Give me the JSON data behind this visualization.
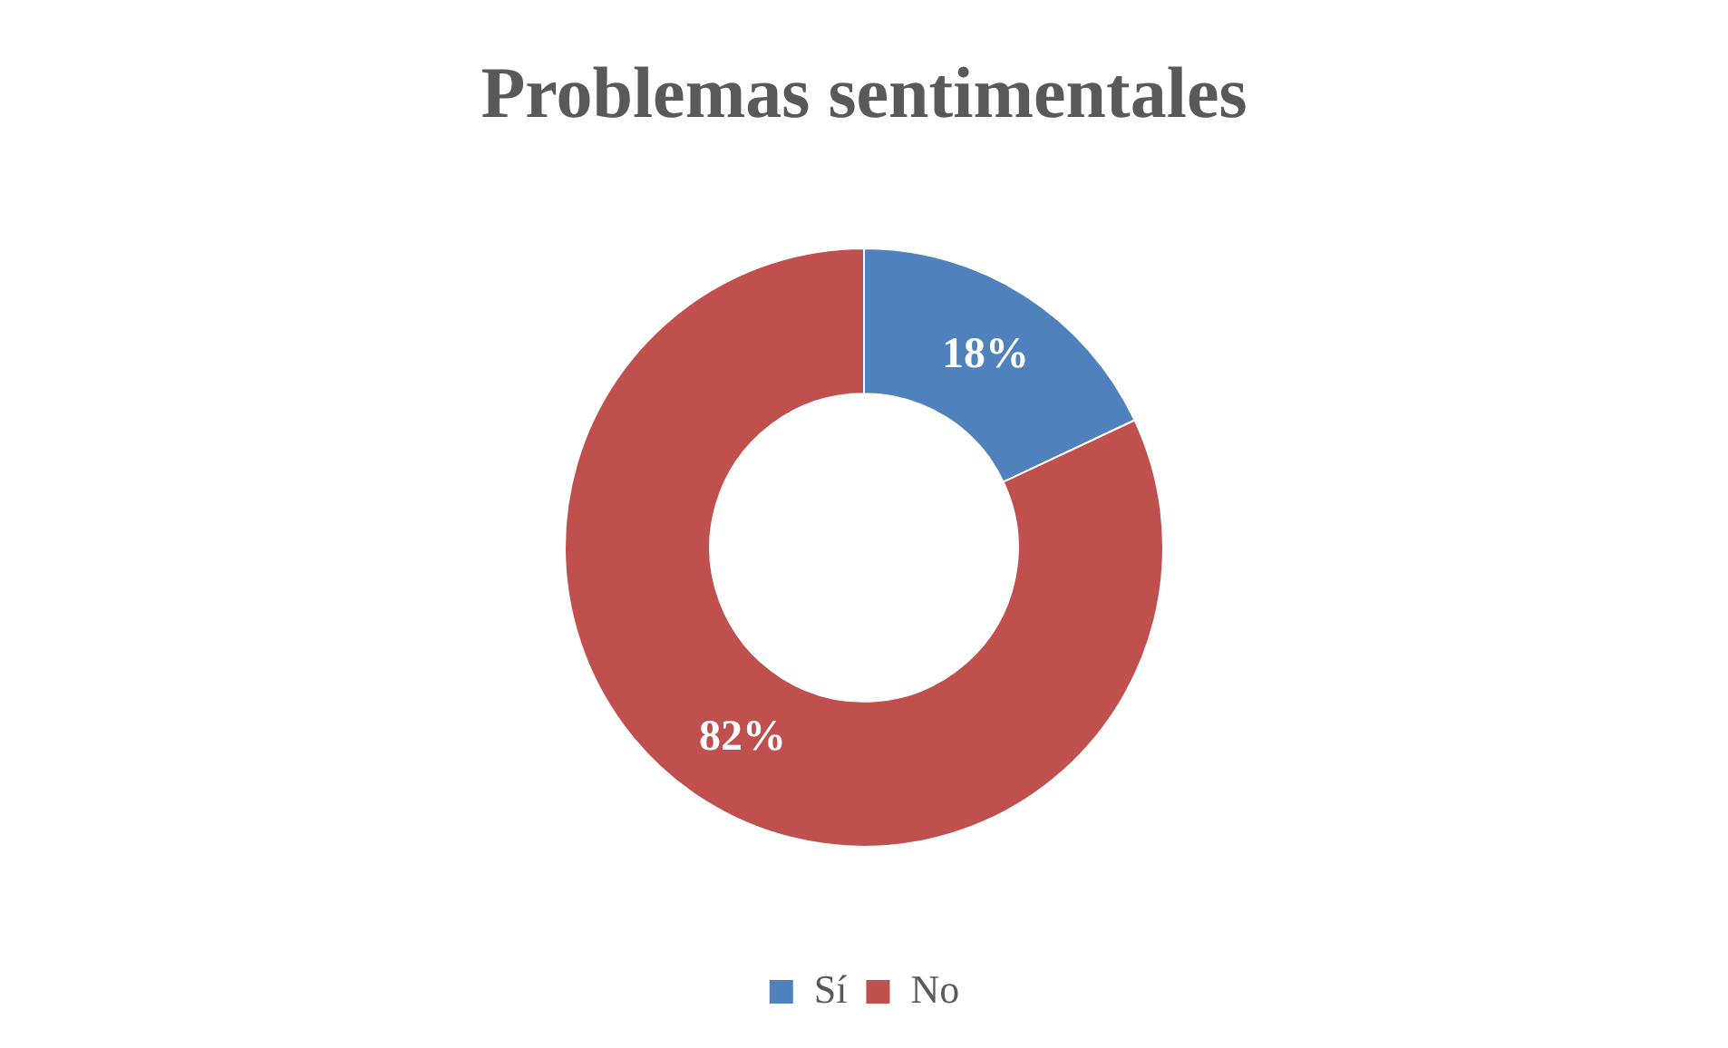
{
  "chart_data": {
    "type": "donut",
    "title": "Problemas sentimentales",
    "categories": [
      "Sí",
      "No"
    ],
    "values": [
      18,
      82
    ],
    "colors": [
      "#4f81bd",
      "#c0504d"
    ],
    "value_labels": [
      "18%",
      "82%"
    ],
    "legend": "bottom"
  }
}
